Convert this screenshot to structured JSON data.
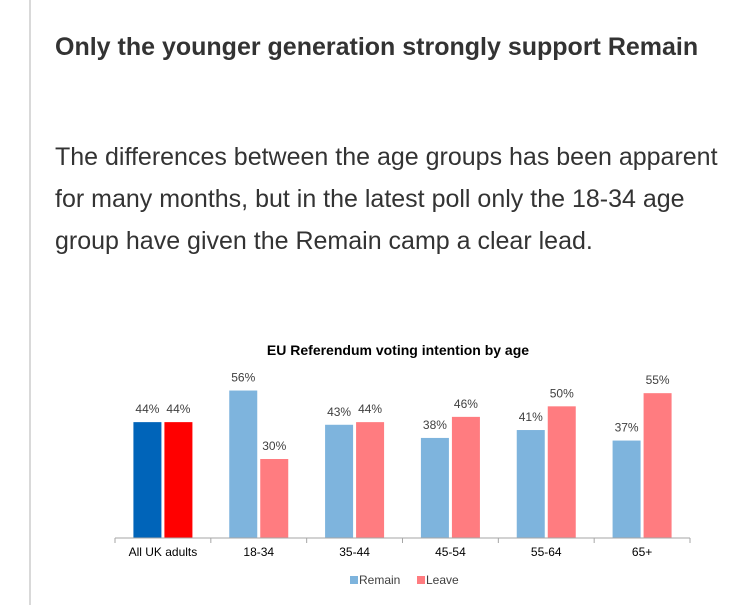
{
  "article": {
    "headline": "Only the younger generation strongly support Remain",
    "body": "The differences between the age groups has been apparent for many months, but in the latest poll only the 18-34 age group have given the Remain camp a clear lead."
  },
  "chart_data": {
    "type": "bar",
    "title": "EU Referendum voting intention by age",
    "categories": [
      "All UK adults",
      "18-34",
      "35-44",
      "45-54",
      "55-64",
      "65+"
    ],
    "series": [
      {
        "name": "Remain",
        "values": [
          44,
          56,
          43,
          38,
          41,
          37
        ],
        "color": "#7eb4dd",
        "highlight_color": "#0064b9"
      },
      {
        "name": "Leave",
        "values": [
          44,
          30,
          44,
          46,
          50,
          55
        ],
        "color": "#ff7c80",
        "highlight_color": "#ff0000"
      }
    ],
    "highlight_category": "All UK adults",
    "value_suffix": "%",
    "ylim": [
      0,
      60
    ],
    "xlabel": "",
    "ylabel": "",
    "grid": false,
    "legend_position": "bottom"
  }
}
